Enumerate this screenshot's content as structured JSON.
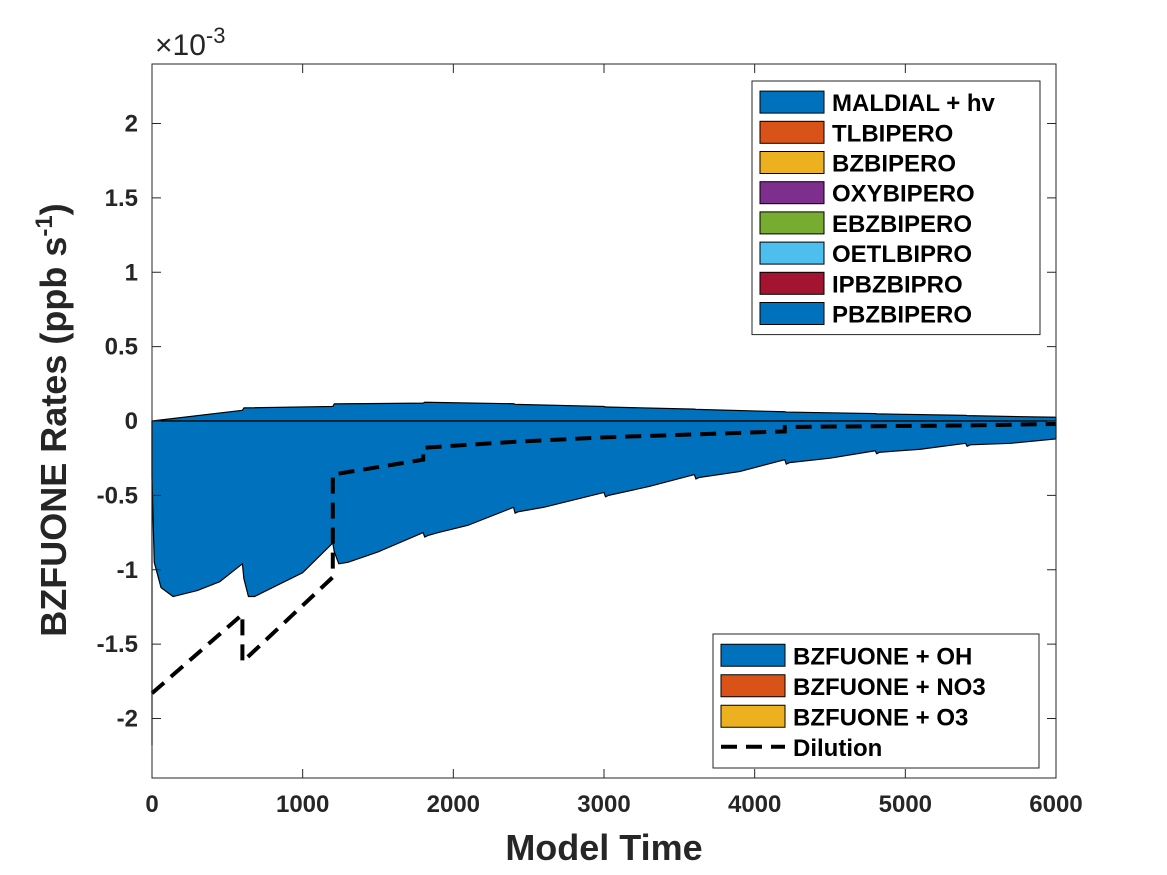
{
  "chart_data": {
    "type": "area",
    "title": "",
    "xlabel": "Model Time",
    "ylabel": "BZFUONE Rates (ppb s",
    "ylabel_sup": "-1",
    "ylabel_close": ")",
    "y_multiplier_prefix": "×10",
    "y_multiplier_exp": "-3",
    "xlim": [
      0,
      6000
    ],
    "ylim": [
      -2.4,
      2.4
    ],
    "x_ticks": [
      0,
      1000,
      2000,
      3000,
      4000,
      5000,
      6000
    ],
    "x_tick_labels": [
      "0",
      "1000",
      "2000",
      "3000",
      "4000",
      "5000",
      "6000"
    ],
    "y_ticks": [
      -2,
      -1.5,
      -1,
      -0.5,
      0,
      0.5,
      1,
      1.5,
      2
    ],
    "y_tick_labels": [
      "-2",
      "-1.5",
      "-1",
      "-0.5",
      "0",
      "0.5",
      "1",
      "1.5",
      "2"
    ],
    "grid": false,
    "production_legend": {
      "placement": "top-right",
      "entries": [
        {
          "name": "MALDIAL + hv",
          "color": "#0072BD"
        },
        {
          "name": "TLBIPERO",
          "color": "#D95319"
        },
        {
          "name": "BZBIPERO",
          "color": "#EDB120"
        },
        {
          "name": "OXYBIPERO",
          "color": "#7E2F8E"
        },
        {
          "name": "EBZBIPERO",
          "color": "#77AC30"
        },
        {
          "name": "OETLBIPRO",
          "color": "#4DBEEE"
        },
        {
          "name": "IPBZBIPRO",
          "color": "#A2142F"
        },
        {
          "name": "PBZBIPERO",
          "color": "#0072BD"
        }
      ]
    },
    "loss_legend": {
      "placement": "bottom-right",
      "entries": [
        {
          "name": "BZFUONE + OH",
          "color": "#0072BD",
          "style": "patch"
        },
        {
          "name": "BZFUONE + NO3",
          "color": "#D95319",
          "style": "patch"
        },
        {
          "name": "BZFUONE + O3",
          "color": "#EDB120",
          "style": "patch"
        },
        {
          "name": "Dilution",
          "color": "#000000",
          "style": "dashed-line"
        }
      ]
    },
    "series": [
      {
        "name": "MALDIAL + hv",
        "kind": "production-area",
        "color": "#0072BD",
        "x": [
          0,
          600,
          610,
          1200,
          1210,
          1800,
          1810,
          2400,
          2410,
          3000,
          3010,
          3600,
          3610,
          4200,
          4210,
          4800,
          4810,
          5400,
          5410,
          6000
        ],
        "y": [
          0,
          0.072,
          0.088,
          0.098,
          0.115,
          0.12,
          0.126,
          0.116,
          0.112,
          0.098,
          0.094,
          0.08,
          0.078,
          0.062,
          0.06,
          0.05,
          0.048,
          0.038,
          0.036,
          0.025
        ]
      },
      {
        "name": "BZFUONE + OH",
        "kind": "loss-area",
        "color": "#0072BD",
        "x": [
          0,
          15,
          60,
          140,
          300,
          450,
          600,
          610,
          640,
          680,
          800,
          1000,
          1200,
          1210,
          1240,
          1300,
          1500,
          1800,
          1810,
          1830,
          1900,
          2100,
          2400,
          2410,
          2430,
          2600,
          3000,
          3010,
          3030,
          3300,
          3600,
          3610,
          3630,
          3900,
          4200,
          4210,
          4230,
          4500,
          4800,
          4810,
          4830,
          5100,
          5400,
          5410,
          5430,
          5700,
          6000
        ],
        "y": [
          -0.38,
          -0.95,
          -1.12,
          -1.18,
          -1.14,
          -1.08,
          -0.96,
          -1.06,
          -1.18,
          -1.18,
          -1.12,
          -1.02,
          -0.82,
          -0.88,
          -0.96,
          -0.95,
          -0.88,
          -0.75,
          -0.78,
          -0.77,
          -0.75,
          -0.7,
          -0.58,
          -0.62,
          -0.61,
          -0.58,
          -0.48,
          -0.51,
          -0.5,
          -0.44,
          -0.36,
          -0.39,
          -0.38,
          -0.34,
          -0.26,
          -0.29,
          -0.28,
          -0.25,
          -0.2,
          -0.22,
          -0.21,
          -0.19,
          -0.15,
          -0.17,
          -0.16,
          -0.15,
          -0.12
        ]
      },
      {
        "name": "Dilution",
        "kind": "dashed-line",
        "color": "#000000",
        "x": [
          0,
          600,
          600,
          1200,
          1200,
          1800,
          1800,
          2400,
          2400,
          3000,
          3000,
          3600,
          3600,
          4200,
          4200,
          4800,
          4800,
          5400,
          5400,
          6000
        ],
        "y": [
          -1.83,
          -1.3,
          -1.62,
          -1.05,
          -0.36,
          -0.26,
          -0.18,
          -0.14,
          -0.14,
          -0.11,
          -0.11,
          -0.09,
          -0.09,
          -0.07,
          -0.04,
          -0.035,
          -0.035,
          -0.03,
          -0.03,
          -0.02
        ]
      }
    ]
  }
}
